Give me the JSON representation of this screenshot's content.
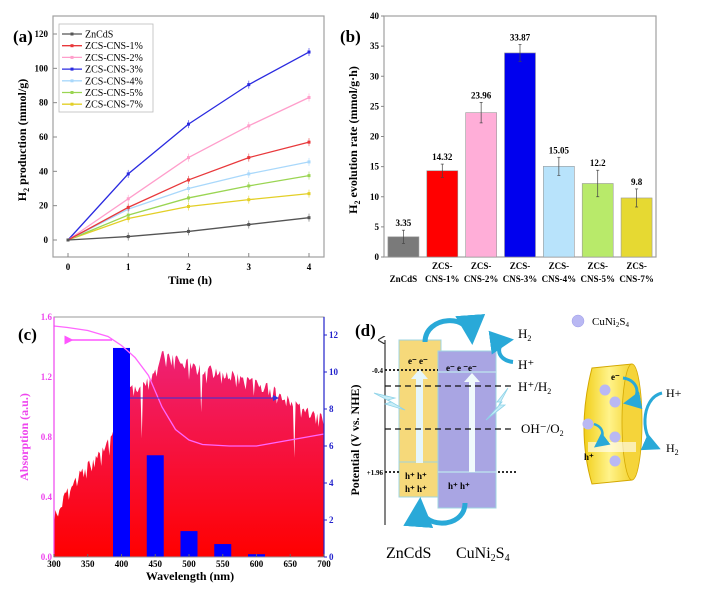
{
  "chart_data": [
    {
      "panel": "(a)",
      "type": "line",
      "xlabel": "Time (h)",
      "ylabel": "H2 production (mmol/g)",
      "ylabel_main": "H",
      "ylabel_sub": "2",
      "ylabel_rest": " production (mmol/g)",
      "x": [
        0,
        1,
        2,
        3,
        4
      ],
      "xticks": [
        "0",
        "1",
        "2",
        "3",
        "4"
      ],
      "yticks": [
        "0",
        "20",
        "40",
        "60",
        "80",
        "100",
        "120"
      ],
      "xlim": [
        -0.35,
        4.15
      ],
      "ylim": [
        -10,
        133
      ],
      "legend_position": "top-left",
      "series": [
        {
          "name": "ZnCdS",
          "color": "#555555",
          "values": [
            0,
            2,
            5,
            9,
            13
          ]
        },
        {
          "name": "ZCS-CNS-1%",
          "color": "#e8383b",
          "values": [
            0,
            19,
            35,
            48,
            57
          ]
        },
        {
          "name": "ZCS-CNS-2%",
          "color": "#ff9ecb",
          "values": [
            0,
            24,
            48,
            66.5,
            83
          ]
        },
        {
          "name": "ZCS-CNS-3%",
          "color": "#2a2ae0",
          "values": [
            0,
            38.5,
            67.5,
            90.5,
            109.5
          ]
        },
        {
          "name": "ZCS-CNS-4%",
          "color": "#a9d8fb",
          "values": [
            0,
            18,
            30,
            38.5,
            45.5
          ]
        },
        {
          "name": "ZCS-CNS-5%",
          "color": "#9ad552",
          "values": [
            0,
            14.5,
            24.5,
            31.5,
            37.5
          ]
        },
        {
          "name": "ZCS-CNS-7%",
          "color": "#e3cf26",
          "values": [
            0,
            12.5,
            19.5,
            23.5,
            27
          ]
        }
      ]
    },
    {
      "panel": "(b)",
      "type": "bar",
      "ylabel_main": "H",
      "ylabel_sub": "2",
      "ylabel_rest": " evolution rate (mmol/g·h)",
      "ylim": [
        0,
        40
      ],
      "yticks": [
        "0",
        "5",
        "10",
        "15",
        "20",
        "25",
        "30",
        "35",
        "40"
      ],
      "categories": [
        {
          "line1": "",
          "line2": "ZnCdS"
        },
        {
          "line1": "ZCS-",
          "line2": "CNS-1%"
        },
        {
          "line1": "ZCS-",
          "line2": "CNS-2%"
        },
        {
          "line1": "ZCS-",
          "line2": "CNS-3%"
        },
        {
          "line1": "ZCS-",
          "line2": "CNS-4%"
        },
        {
          "line1": "ZCS-",
          "line2": "CNS-5%"
        },
        {
          "line1": "ZCS-",
          "line2": "CNS-7%"
        }
      ],
      "values": [
        3.35,
        14.32,
        23.96,
        33.87,
        15.05,
        12.2,
        9.8
      ],
      "labels": [
        "3.35",
        "14.32",
        "23.96",
        "33.87",
        "15.05",
        "12.2",
        "9.8"
      ],
      "errors": [
        1.1,
        1.1,
        1.7,
        1.4,
        1.5,
        2.2,
        1.5
      ],
      "colors": [
        "#7a7a7a",
        "#ff0000",
        "#ffaed8",
        "#0000ee",
        "#b8e3fb",
        "#b8ea6a",
        "#e6d932"
      ]
    },
    {
      "panel": "(c)",
      "type": "bar",
      "xlabel": "Wavelength (nm)",
      "ylabel_left": "Absorption (a.u.)",
      "ylabel_right": "Potential (V vs. NHE)",
      "xlim": [
        300,
        700
      ],
      "ylim_left": [
        0,
        1.6
      ],
      "ylim_right": [
        0,
        13
      ],
      "xticks": [
        "300",
        "350",
        "400",
        "450",
        "500",
        "550",
        "600",
        "650",
        "700"
      ],
      "yticks_left": [
        "0.0",
        "0.4",
        "0.8",
        "1.2",
        "1.6"
      ],
      "yticks_right": [
        "0",
        "2",
        "4",
        "6",
        "8",
        "10",
        "12"
      ],
      "left_color": "#ee44ee",
      "right_color": "#2222cc",
      "bars": {
        "x": [
          400,
          450,
          500,
          550,
          600
        ],
        "values": [
          11.3,
          5.5,
          1.4,
          0.7,
          0.15
        ],
        "color": "#0000ff"
      },
      "absorption": {
        "x": [
          300,
          320,
          350,
          380,
          400,
          420,
          440,
          460,
          480,
          500,
          520,
          560,
          600,
          650,
          700
        ],
        "values": [
          1.54,
          1.53,
          1.51,
          1.47,
          1.41,
          1.33,
          1.21,
          1.0,
          0.85,
          0.78,
          0.75,
          0.74,
          0.74,
          0.78,
          0.82
        ],
        "color": "#ff66ff"
      },
      "solar_spectrum": {
        "x": [
          300,
          330,
          360,
          385,
          410,
          440,
          460,
          480,
          510,
          550,
          600,
          650,
          700
        ],
        "values": [
          0.3,
          0.55,
          0.68,
          0.82,
          1.15,
          1.2,
          1.38,
          1.36,
          1.3,
          1.26,
          1.2,
          1.08,
          0.95
        ],
        "color_top": "#ee2277",
        "color_bottom": "#ff0000"
      }
    }
  ],
  "diagram": {
    "panel": "(d)",
    "y_axis_label": "Potential (V vs. NHE)",
    "levels": {
      "cb": "-0.4",
      "vb": "+1.96"
    },
    "refs": {
      "h2_label": "H",
      "h2_sub": "2",
      "hplus": "H⁺",
      "hh2_a": "H⁺/H",
      "hh2_sub": "2",
      "oh_a": "OH⁻/O",
      "oh_sub": "2"
    },
    "electrons_zncds": "e⁻ e⁻",
    "electrons_cuni": "e⁻  e  ⁻e⁻",
    "holes_zncds_1": "h⁺ h⁺",
    "holes_zncds_2": "h⁺ h⁺",
    "holes_cuni": "h⁺   h⁺",
    "material_1": "ZnCdS",
    "material_2_main": "CuNi",
    "material_2_sub1": "2",
    "material_2_mid": "S",
    "material_2_sub2": "4",
    "legend_label_main": "CuNi",
    "legend_label_sub1": "2",
    "legend_label_mid": "S",
    "legend_label_sub2": "4",
    "particle_e": "e⁻",
    "particle_h": "h⁺",
    "side_hplus": "H+",
    "side_h2": "H",
    "side_h2_sub": "2",
    "colors": {
      "zncds": "#f6d97a",
      "cuni": "#a9a5e3",
      "arrow": "#29a9d8",
      "particle": "#b9b8f3"
    }
  }
}
